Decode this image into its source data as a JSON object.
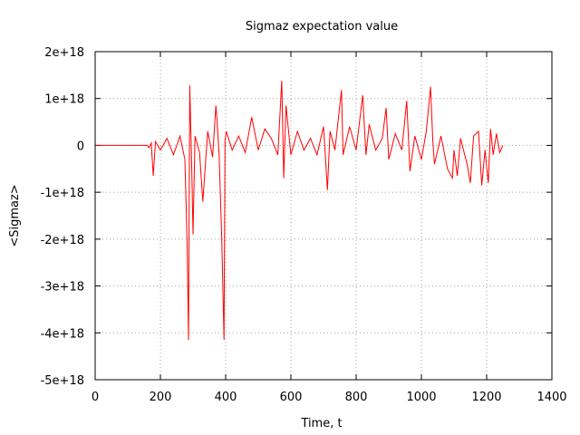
{
  "chart_data": {
    "type": "line",
    "title": "Sigmaz expectation value",
    "xlabel": "Time, t",
    "ylabel": "<Sigmaz>",
    "xlim": [
      0,
      1400
    ],
    "ylim": [
      -5e+18,
      2e+18
    ],
    "x_ticks": [
      {
        "value": 0,
        "label": "0"
      },
      {
        "value": 200,
        "label": "200"
      },
      {
        "value": 400,
        "label": "400"
      },
      {
        "value": 600,
        "label": "600"
      },
      {
        "value": 800,
        "label": "800"
      },
      {
        "value": 1000,
        "label": "1000"
      },
      {
        "value": 1200,
        "label": "1200"
      },
      {
        "value": 1400,
        "label": "1400"
      }
    ],
    "y_ticks": [
      {
        "value": 2e+18,
        "label": "2e+18"
      },
      {
        "value": 1e+18,
        "label": "1e+18"
      },
      {
        "value": 0,
        "label": "0"
      },
      {
        "value": -1e+18,
        "label": "-1e+18"
      },
      {
        "value": -2e+18,
        "label": "-2e+18"
      },
      {
        "value": -3e+18,
        "label": "-3e+18"
      },
      {
        "value": -4e+18,
        "label": "-4e+18"
      },
      {
        "value": -5e+18,
        "label": "-5e+18"
      }
    ],
    "grid": true,
    "grid_style": "dotted",
    "series": [
      {
        "color": "#ff0000",
        "x": [
          0,
          160,
          165,
          172,
          178,
          185,
          200,
          220,
          240,
          260,
          275,
          282,
          286,
          290,
          296,
          300,
          306,
          320,
          330,
          345,
          360,
          370,
          374,
          380,
          388,
          395,
          398,
          402,
          420,
          440,
          460,
          480,
          500,
          520,
          540,
          560,
          572,
          578,
          585,
          600,
          620,
          640,
          660,
          680,
          700,
          712,
          720,
          735,
          755,
          760,
          780,
          800,
          820,
          830,
          840,
          860,
          880,
          892,
          900,
          920,
          940,
          955,
          965,
          980,
          1000,
          1015,
          1028,
          1035,
          1040,
          1060,
          1080,
          1095,
          1100,
          1110,
          1120,
          1140,
          1150,
          1160,
          1175,
          1185,
          1195,
          1205,
          1212,
          1220,
          1230,
          1240,
          1250
        ],
        "y": [
          0,
          0,
          -5e+16,
          5e+16,
          -6.5e+17,
          8e+16,
          -1e+17,
          1.5e+17,
          -2e+17,
          2e+17,
          -3e+17,
          -2.1e+18,
          -4.15e+18,
          1.28e+18,
          -5e+17,
          -1.9e+18,
          2e+17,
          -1.5e+17,
          -1.2e+18,
          3e+17,
          -2.5e+17,
          8.5e+17,
          5e+17,
          -2e+17,
          -2e+18,
          -4.15e+18,
          1e+17,
          3e+17,
          -1e+17,
          2e+17,
          -1.5e+17,
          6e+17,
          -1e+17,
          3.5e+17,
          1.5e+17,
          -2e+17,
          1.38e+18,
          -7e+17,
          8.5e+17,
          -2e+17,
          3e+17,
          -1e+17,
          1.5e+17,
          -2e+17,
          4e+17,
          -9.5e+17,
          3e+17,
          -1e+17,
          1.18e+18,
          -2e+17,
          4e+17,
          -1e+17,
          1.07e+18,
          -2e+17,
          4.5e+17,
          -1e+17,
          1.5e+17,
          8e+17,
          -3e+17,
          2.5e+17,
          -1e+17,
          9.5e+17,
          -5.5e+17,
          2e+17,
          -3e+17,
          3e+17,
          1.25e+18,
          1e+17,
          -4e+17,
          2e+17,
          -5e+17,
          -7e+17,
          -1e+17,
          -6.5e+17,
          1.5e+17,
          -4e+17,
          -8e+17,
          2e+17,
          3e+17,
          -8.5e+17,
          -1e+17,
          -8e+17,
          3.5e+17,
          -2e+17,
          2.5e+17,
          -1.5e+17,
          0.0
        ]
      }
    ]
  }
}
